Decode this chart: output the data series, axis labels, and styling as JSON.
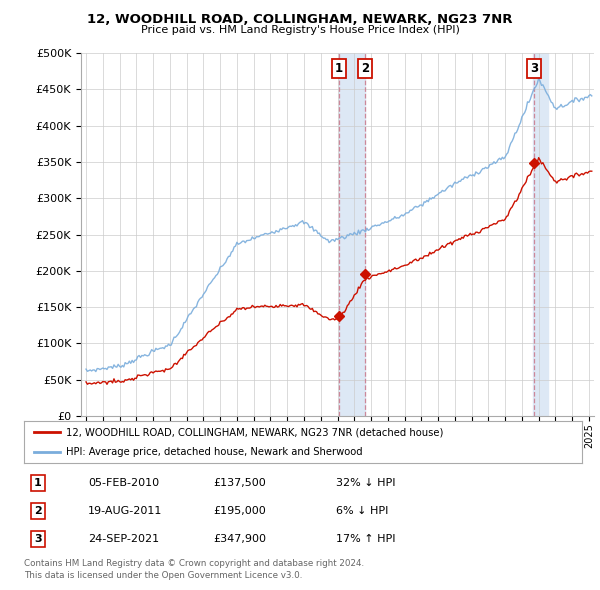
{
  "title": "12, WOODHILL ROAD, COLLINGHAM, NEWARK, NG23 7NR",
  "subtitle": "Price paid vs. HM Land Registry's House Price Index (HPI)",
  "ylabel_ticks": [
    "£0",
    "£50K",
    "£100K",
    "£150K",
    "£200K",
    "£250K",
    "£300K",
    "£350K",
    "£400K",
    "£450K",
    "£500K"
  ],
  "ytick_vals": [
    0,
    50000,
    100000,
    150000,
    200000,
    250000,
    300000,
    350000,
    400000,
    450000,
    500000
  ],
  "xlim_start": 1994.7,
  "xlim_end": 2025.3,
  "ylim": [
    0,
    500000
  ],
  "sale_dates": [
    2010.09,
    2011.63,
    2021.73
  ],
  "sale_prices": [
    137500,
    195000,
    347900
  ],
  "sale_labels": [
    "1",
    "2",
    "3"
  ],
  "hpi_color": "#7aaddc",
  "price_color": "#cc1100",
  "legend_label_price": "12, WOODHILL ROAD, COLLINGHAM, NEWARK, NG23 7NR (detached house)",
  "legend_label_hpi": "HPI: Average price, detached house, Newark and Sherwood",
  "table_rows": [
    [
      "1",
      "05-FEB-2010",
      "£137,500",
      "32% ↓ HPI"
    ],
    [
      "2",
      "19-AUG-2011",
      "£195,000",
      "6% ↓ HPI"
    ],
    [
      "3",
      "24-SEP-2021",
      "£347,900",
      "17% ↑ HPI"
    ]
  ],
  "footnote1": "Contains HM Land Registry data © Crown copyright and database right 2024.",
  "footnote2": "This data is licensed under the Open Government Licence v3.0.",
  "bg_color": "#ffffff",
  "plot_bg_color": "#ffffff",
  "grid_color": "#cccccc",
  "vline_color": "#cc8899",
  "shade_color": "#dde8f5",
  "marker_color": "#cc1100"
}
